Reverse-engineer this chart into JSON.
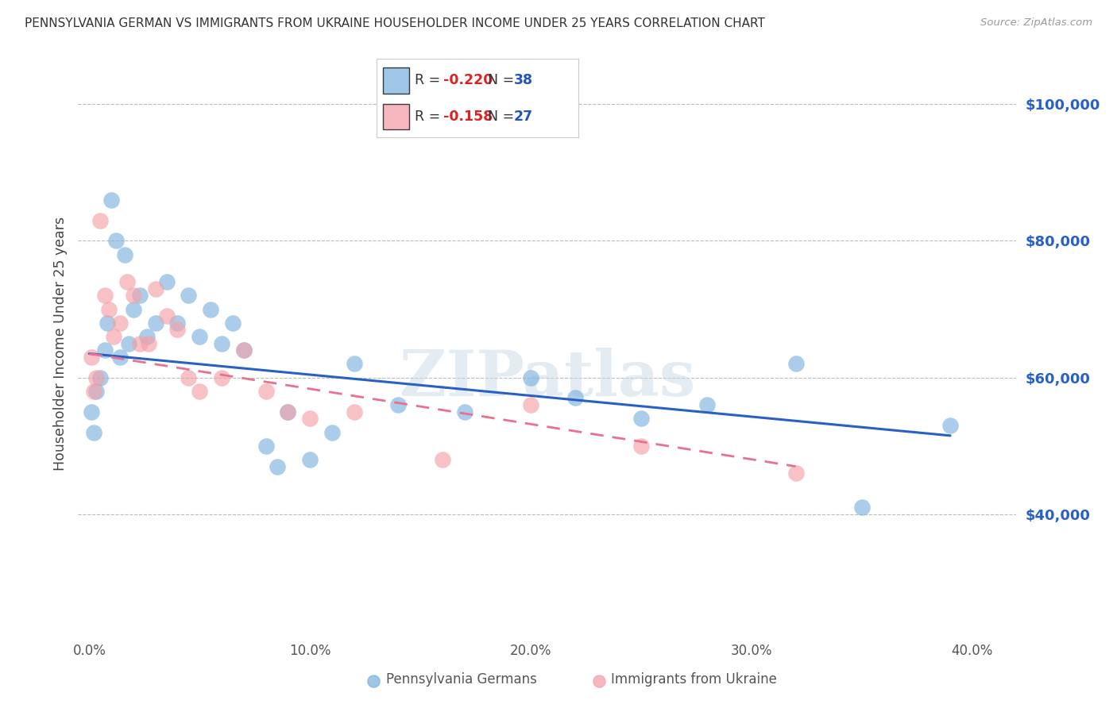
{
  "title": "PENNSYLVANIA GERMAN VS IMMIGRANTS FROM UKRAINE HOUSEHOLDER INCOME UNDER 25 YEARS CORRELATION CHART",
  "source": "Source: ZipAtlas.com",
  "ylabel": "Householder Income Under 25 years",
  "xlabel_ticks": [
    "0.0%",
    "10.0%",
    "20.0%",
    "30.0%",
    "40.0%"
  ],
  "xlabel_vals": [
    0.0,
    10.0,
    20.0,
    30.0,
    40.0
  ],
  "ytick_vals": [
    40000,
    60000,
    80000,
    100000
  ],
  "ytick_labels": [
    "$40,000",
    "$60,000",
    "$80,000",
    "$100,000"
  ],
  "ylim": [
    22000,
    108000
  ],
  "xlim": [
    -0.5,
    42.0
  ],
  "blue_color": "#7EB3E0",
  "pink_color": "#F4A0A8",
  "blue_line_color": "#2860C8",
  "pink_line_color": "#E87090",
  "legend_blue_label": "Pennsylvania Germans",
  "legend_pink_label": "Immigrants from Ukraine",
  "r_blue": "-0.220",
  "n_blue": "38",
  "r_pink": "-0.158",
  "n_pink": "27",
  "blue_points_x": [
    0.1,
    0.2,
    0.3,
    0.5,
    0.7,
    0.8,
    1.0,
    1.2,
    1.4,
    1.6,
    1.8,
    2.0,
    2.3,
    2.6,
    3.0,
    3.5,
    4.0,
    4.5,
    5.0,
    5.5,
    6.0,
    6.5,
    7.0,
    8.0,
    8.5,
    9.0,
    10.0,
    11.0,
    12.0,
    14.0,
    17.0,
    20.0,
    22.0,
    25.0,
    28.0,
    32.0,
    35.0,
    39.0
  ],
  "blue_points_y": [
    55000,
    52000,
    58000,
    60000,
    64000,
    68000,
    86000,
    80000,
    63000,
    78000,
    65000,
    70000,
    72000,
    66000,
    68000,
    74000,
    68000,
    72000,
    66000,
    70000,
    65000,
    68000,
    64000,
    50000,
    47000,
    55000,
    48000,
    52000,
    62000,
    56000,
    55000,
    60000,
    57000,
    54000,
    56000,
    62000,
    41000,
    53000
  ],
  "pink_points_x": [
    0.1,
    0.2,
    0.3,
    0.5,
    0.7,
    0.9,
    1.1,
    1.4,
    1.7,
    2.0,
    2.3,
    2.7,
    3.0,
    3.5,
    4.0,
    4.5,
    5.0,
    6.0,
    7.0,
    8.0,
    9.0,
    10.0,
    12.0,
    16.0,
    20.0,
    25.0,
    32.0
  ],
  "pink_points_y": [
    63000,
    58000,
    60000,
    83000,
    72000,
    70000,
    66000,
    68000,
    74000,
    72000,
    65000,
    65000,
    73000,
    69000,
    67000,
    60000,
    58000,
    60000,
    64000,
    58000,
    55000,
    54000,
    55000,
    48000,
    56000,
    50000,
    46000
  ],
  "watermark": "ZIPatlas",
  "background_color": "#FFFFFF",
  "grid_color": "#BBBBBB",
  "blue_reg_x0": 0.0,
  "blue_reg_x1": 39.0,
  "blue_reg_y0": 63500,
  "blue_reg_y1": 51500,
  "pink_reg_x0": 0.0,
  "pink_reg_x1": 32.0,
  "pink_reg_y0": 63500,
  "pink_reg_y1": 47000
}
